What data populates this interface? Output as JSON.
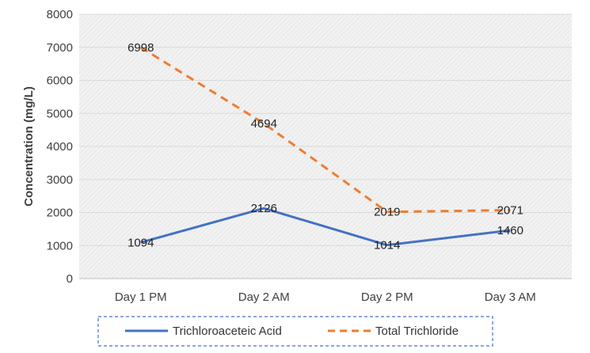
{
  "chart_data": {
    "type": "line",
    "title": "",
    "xlabel": "",
    "ylabel": "Concentration (mg/L)",
    "categories": [
      "Day 1 PM",
      "Day 2 AM",
      "Day 2 PM",
      "Day 3 AM"
    ],
    "ylim": [
      0,
      8000
    ],
    "yticks": [
      0,
      1000,
      2000,
      3000,
      4000,
      5000,
      6000,
      7000,
      8000
    ],
    "grid": true,
    "legend_position": "bottom",
    "series": [
      {
        "name": "Trichloroaceteic Acid",
        "values": [
          1094,
          2126,
          1014,
          1460
        ],
        "color": "#4472c4",
        "style": "solid",
        "labels": [
          "1094",
          "2126",
          "1014",
          "1460"
        ]
      },
      {
        "name": "Total Trichloride",
        "values": [
          6998,
          4694,
          2019,
          2071
        ],
        "color": "#ed7d31",
        "style": "dashed",
        "labels": [
          "6998",
          "4694",
          "2019",
          "2071"
        ]
      }
    ]
  }
}
